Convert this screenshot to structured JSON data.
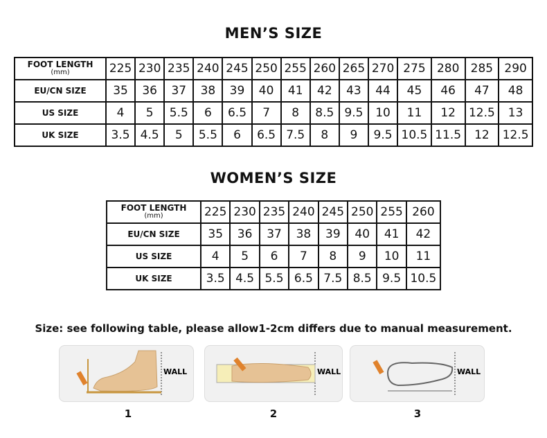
{
  "men": {
    "title": "MEN’S SIZE",
    "rows": [
      {
        "label": "FOOT LENGTH",
        "unit": "(mm)",
        "values": [
          "225",
          "230",
          "235",
          "240",
          "245",
          "250",
          "255",
          "260",
          "265",
          "270",
          "275",
          "280",
          "285",
          "290"
        ]
      },
      {
        "label": "EU/CN SIZE",
        "values": [
          "35",
          "36",
          "37",
          "38",
          "39",
          "40",
          "41",
          "42",
          "43",
          "44",
          "45",
          "46",
          "47",
          "48"
        ]
      },
      {
        "label": "US SIZE",
        "values": [
          "4",
          "5",
          "5.5",
          "6",
          "6.5",
          "7",
          "8",
          "8.5",
          "9.5",
          "10",
          "11",
          "12",
          "12.5",
          "13"
        ]
      },
      {
        "label": "UK SIZE",
        "values": [
          "3.5",
          "4.5",
          "5",
          "5.5",
          "6",
          "6.5",
          "7.5",
          "8",
          "9",
          "9.5",
          "10.5",
          "11.5",
          "12",
          "12.5"
        ]
      }
    ]
  },
  "women": {
    "title": "WOMEN’S SIZE",
    "rows": [
      {
        "label": "FOOT LENGTH",
        "unit": "(mm)",
        "values": [
          "225",
          "230",
          "235",
          "240",
          "245",
          "250",
          "255",
          "260"
        ]
      },
      {
        "label": "EU/CN SIZE",
        "values": [
          "35",
          "36",
          "37",
          "38",
          "39",
          "40",
          "41",
          "42"
        ]
      },
      {
        "label": "US SIZE",
        "values": [
          "4",
          "5",
          "6",
          "7",
          "8",
          "9",
          "10",
          "11"
        ]
      },
      {
        "label": "UK SIZE",
        "values": [
          "3.5",
          "4.5",
          "5.5",
          "6.5",
          "7.5",
          "8.5",
          "9.5",
          "10.5"
        ]
      }
    ]
  },
  "note": "Size: see following table, please allow1-2cm differs due to manual measurement.",
  "steps": [
    {
      "number": "1",
      "wall": "WALL"
    },
    {
      "number": "2",
      "wall": "WALL"
    },
    {
      "number": "3",
      "wall": "WALL"
    }
  ]
}
